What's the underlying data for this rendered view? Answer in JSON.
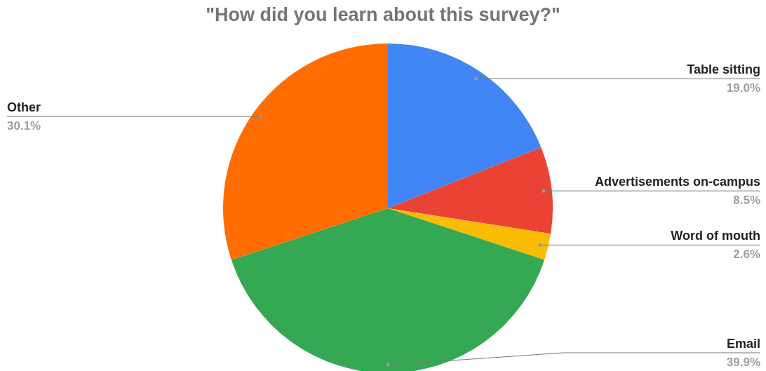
{
  "chart_data": {
    "type": "pie",
    "title": "\"How did you learn about this survey?\"",
    "categories": [
      "Table sitting",
      "Advertisements on-campus",
      "Word of mouth",
      "Email",
      "Other"
    ],
    "values": [
      19.0,
      8.5,
      2.6,
      39.9,
      30.1
    ],
    "colors": [
      "#4285f4",
      "#ea4335",
      "#fbbc04",
      "#34a853",
      "#ff6d01"
    ],
    "value_labels": [
      "19.0%",
      "8.5%",
      "2.6%",
      "39.9%",
      "30.1%"
    ],
    "legend": false
  }
}
